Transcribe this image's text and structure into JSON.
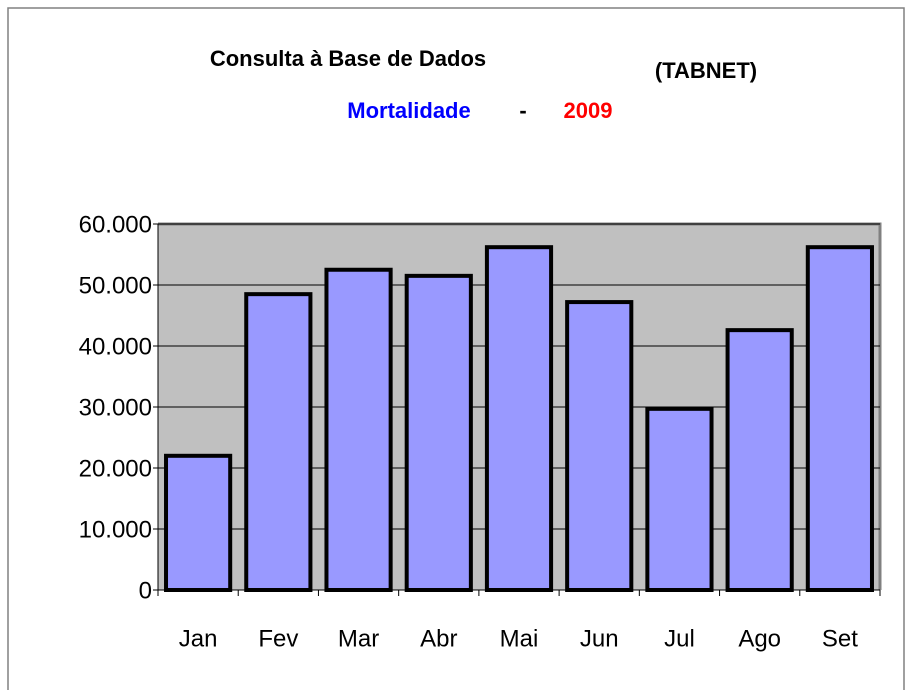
{
  "chart_data": {
    "type": "bar",
    "title": "Consulta à Base de Dados",
    "title_note": "(TABNET)",
    "subtitle": [
      "Mortalidade",
      "-",
      "2009"
    ],
    "subtitle_colors": [
      "#0000ff",
      "#000000",
      "#ff0000"
    ],
    "categories": [
      "Jan",
      "Fev",
      "Mar",
      "Abr",
      "Mai",
      "Jun",
      "Jul",
      "Ago",
      "Set"
    ],
    "values": [
      22000,
      48500,
      52500,
      51500,
      56200,
      47200,
      29700,
      42600,
      56200
    ],
    "color": "#9999ff",
    "ylim": [
      0,
      60000
    ],
    "yticks": [
      0,
      {
        "value": 10000,
        "label": "10.000"
      },
      {
        "value": 20000,
        "label": "20.000"
      },
      {
        "value": 30000,
        "label": "30.000"
      },
      {
        "value": 40000,
        "label": "40.000"
      },
      {
        "value": 50000,
        "label": "50.000"
      },
      {
        "value": 60000,
        "label": "60.000"
      }
    ],
    "grid": true
  }
}
